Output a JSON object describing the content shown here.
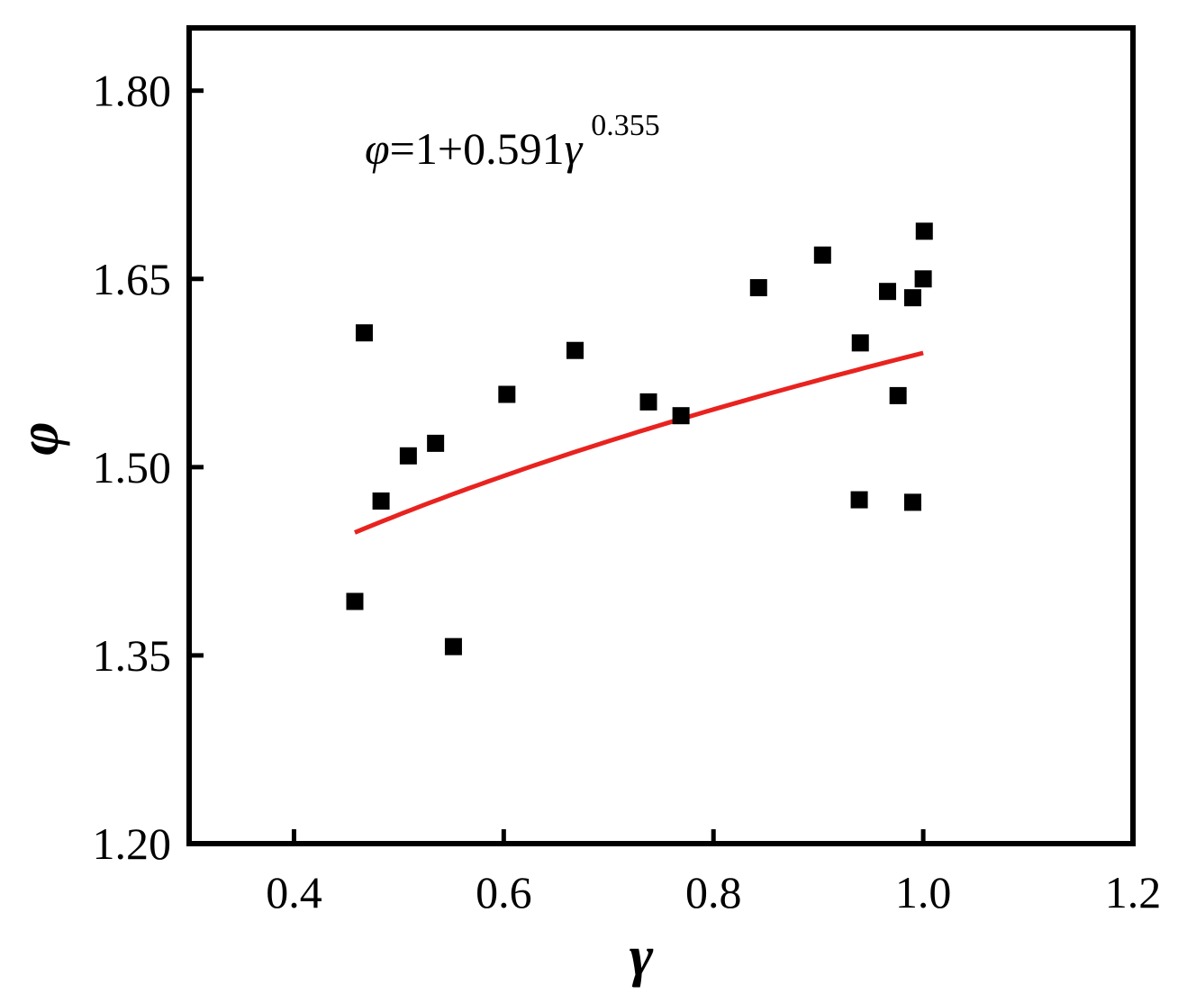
{
  "chart_data": {
    "type": "scatter",
    "title": "",
    "xlabel": "γ",
    "ylabel": "φ",
    "xlim": [
      0.3,
      1.2
    ],
    "ylim": [
      1.2,
      1.85
    ],
    "xticks": [
      0.4,
      0.6,
      0.8,
      1.0,
      1.2
    ],
    "xtick_labels": [
      "0.4",
      "0.6",
      "0.8",
      "1.0",
      "1.2"
    ],
    "yticks": [
      1.2,
      1.35,
      1.5,
      1.65,
      1.8
    ],
    "ytick_labels": [
      "1.20",
      "1.35",
      "1.50",
      "1.65",
      "1.80"
    ],
    "grid": false,
    "annotation": {
      "var": "φ",
      "lhs_rest": "=1+0.591",
      "base_var": "γ",
      "exponent": "0.355"
    },
    "series": [
      {
        "kind": "points",
        "marker": "square",
        "color": "#000000",
        "x": [
          0.458,
          0.467,
          0.483,
          0.509,
          0.535,
          0.552,
          0.603,
          0.668,
          0.738,
          0.769,
          0.843,
          0.904,
          0.939,
          0.94,
          0.966,
          0.976,
          0.99,
          0.99,
          1.0,
          1.001
        ],
        "y": [
          1.393,
          1.607,
          1.473,
          1.509,
          1.519,
          1.357,
          1.558,
          1.593,
          1.552,
          1.541,
          1.643,
          1.669,
          1.474,
          1.599,
          1.64,
          1.557,
          1.635,
          1.472,
          1.65,
          1.688
        ]
      },
      {
        "kind": "fit",
        "color": "#e8231f",
        "equation": {
          "a": 1,
          "b": 0.591,
          "c": 0.355
        },
        "x_range": [
          0.458,
          1.0
        ]
      }
    ]
  }
}
